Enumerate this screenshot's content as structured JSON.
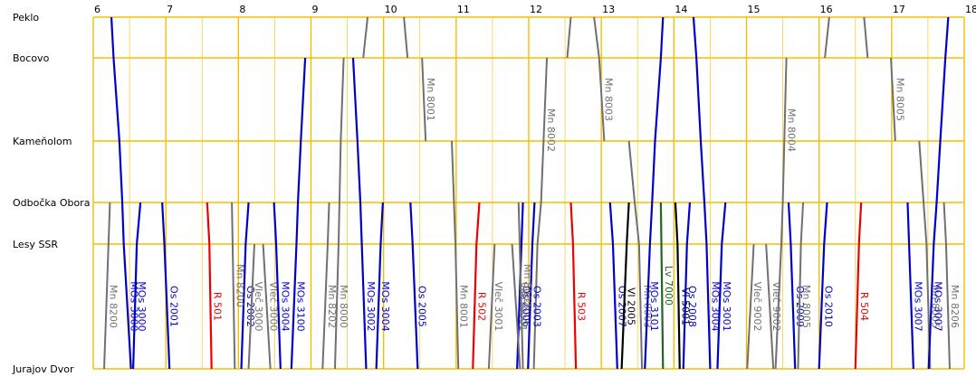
{
  "stations": [
    {
      "name": "Peklo",
      "km": 0
    },
    {
      "name": "Bocovo",
      "km": 5
    },
    {
      "name": "Kameňolom",
      "km": 15
    },
    {
      "name": "Odbočka Obora",
      "km": 22.4
    },
    {
      "name": "Lesy SSR",
      "km": 27.4
    },
    {
      "name": "Jurajov Dvor",
      "km": 42.4
    }
  ],
  "hours": [
    "6",
    "7",
    "8",
    "9",
    "10",
    "11",
    "12",
    "13",
    "14",
    "15",
    "16",
    "17",
    "18"
  ],
  "time_range": [
    6,
    18
  ],
  "colors": {
    "grid_hour": "#f0c000",
    "grid_half": "#f5d040",
    "grid_station": "#f0c000",
    "MOs": "#0000cc",
    "Os": "#0000cc",
    "Mn": "#707070",
    "Vlec": "#707070",
    "R": "#ee0000",
    "Lv": "#226622",
    "Vl": "#000000"
  },
  "trains": [
    {
      "label": "MOs 3000",
      "kind": "MOs",
      "stops": [
        [
          6.25,
          0
        ],
        [
          6.28,
          5
        ],
        [
          6.36,
          15
        ],
        [
          6.4,
          22.4
        ],
        [
          6.42,
          27.4
        ],
        [
          6.52,
          42.4
        ]
      ]
    },
    {
      "label": "MOs 3000",
      "kind": "MOs",
      "stops": [
        [
          6.65,
          22.4
        ],
        [
          6.6,
          27.4
        ],
        [
          6.55,
          42.4
        ]
      ]
    },
    {
      "label": "Mn 8200",
      "kind": "Mn",
      "stops": [
        [
          6.23,
          22.4
        ],
        [
          6.21,
          27.4
        ],
        [
          6.15,
          42.4
        ]
      ]
    },
    {
      "label": "Os 2001",
      "kind": "Os",
      "stops": [
        [
          6.95,
          22.4
        ],
        [
          6.98,
          27.4
        ],
        [
          7.05,
          42.4
        ]
      ]
    },
    {
      "label": "R 501",
      "kind": "R",
      "stops": [
        [
          7.57,
          22.4
        ],
        [
          7.6,
          27.4
        ],
        [
          7.63,
          42.4
        ]
      ]
    },
    {
      "label": "Os 2002",
      "kind": "Os",
      "stops": [
        [
          8.14,
          22.4
        ],
        [
          8.1,
          27.4
        ],
        [
          8.04,
          42.4
        ]
      ]
    },
    {
      "label": "Mn 8200",
      "kind": "Mn",
      "stops": [
        [
          7.91,
          22.4
        ],
        [
          7.95,
          42.4
        ]
      ]
    },
    {
      "label": "Vleč 3000",
      "kind": "Mn",
      "stops": [
        [
          8.22,
          27.4
        ],
        [
          8.14,
          42.4
        ]
      ]
    },
    {
      "label": "Vleč 3000",
      "kind": "Mn",
      "stops": [
        [
          8.34,
          27.4
        ],
        [
          8.44,
          42.4
        ]
      ]
    },
    {
      "label": "MOs 3004",
      "kind": "MOs",
      "stops": [
        [
          8.49,
          22.4
        ],
        [
          8.52,
          27.4
        ],
        [
          8.58,
          42.4
        ]
      ]
    },
    {
      "label": "MOs 3100",
      "kind": "MOs",
      "stops": [
        [
          8.92,
          5
        ],
        [
          8.86,
          15
        ],
        [
          8.82,
          22.4
        ],
        [
          8.8,
          27.4
        ],
        [
          8.73,
          42.4
        ]
      ]
    },
    {
      "label": "Mn 8202",
      "kind": "Mn",
      "stops": [
        [
          9.25,
          22.4
        ],
        [
          9.23,
          27.4
        ],
        [
          9.16,
          42.4
        ]
      ]
    },
    {
      "label": "Mn 8000",
      "kind": "Mn",
      "stops": [
        [
          9.45,
          5
        ],
        [
          9.41,
          15
        ],
        [
          9.38,
          27.4
        ],
        [
          9.33,
          42.4
        ]
      ]
    },
    {
      "label": "MOs 3002",
      "kind": "MOs",
      "stops": [
        [
          9.58,
          5
        ],
        [
          9.64,
          15
        ],
        [
          9.68,
          22.4
        ],
        [
          9.7,
          27.4
        ],
        [
          9.76,
          42.4
        ]
      ]
    },
    {
      "label": "MOs 3004",
      "kind": "MOs",
      "stops": [
        [
          9.99,
          22.4
        ],
        [
          9.96,
          27.4
        ],
        [
          9.9,
          42.4
        ]
      ]
    },
    {
      "label": "",
      "kind": "Mn",
      "stops": [
        [
          9.78,
          0
        ],
        [
          9.72,
          5
        ]
      ]
    },
    {
      "label": "",
      "kind": "Mn",
      "stops": [
        [
          10.28,
          0
        ],
        [
          10.33,
          5
        ]
      ]
    },
    {
      "label": "Mn 8001",
      "kind": "Mn",
      "stops": [
        [
          10.53,
          5
        ],
        [
          10.58,
          15
        ]
      ]
    },
    {
      "label": "Os 2005",
      "kind": "Os",
      "stops": [
        [
          10.37,
          22.4
        ],
        [
          10.4,
          27.4
        ],
        [
          10.47,
          42.4
        ]
      ]
    },
    {
      "label": "Mn 8001",
      "kind": "Mn",
      "stops": [
        [
          10.94,
          15
        ],
        [
          10.99,
          27.4
        ],
        [
          11.03,
          42.4
        ]
      ]
    },
    {
      "label": "R 502",
      "kind": "R",
      "stops": [
        [
          11.32,
          22.4
        ],
        [
          11.28,
          27.4
        ],
        [
          11.23,
          42.4
        ]
      ]
    },
    {
      "label": "Vleč 3001",
      "kind": "Mn",
      "stops": [
        [
          11.53,
          27.4
        ],
        [
          11.45,
          42.4
        ]
      ]
    },
    {
      "label": "Os 2006",
      "kind": "Os",
      "stops": [
        [
          11.92,
          22.4
        ],
        [
          11.9,
          27.4
        ],
        [
          11.84,
          42.4
        ]
      ]
    },
    {
      "label": "Mn 8002",
      "kind": "Mn",
      "stops": [
        [
          12.25,
          5
        ],
        [
          12.17,
          22.4
        ],
        [
          12.12,
          27.4
        ],
        [
          12.07,
          42.4
        ]
      ]
    },
    {
      "label": "Os 2003",
      "kind": "Os",
      "stops": [
        [
          12.08,
          22.4
        ],
        [
          12.05,
          27.4
        ],
        [
          11.99,
          42.4
        ]
      ]
    },
    {
      "label": "Vleč 9001",
      "kind": "Mn",
      "stops": [
        [
          11.77,
          27.4
        ],
        [
          11.88,
          42.4
        ]
      ]
    },
    {
      "label": "Mn 8002",
      "kind": "Mn",
      "stops": [
        [
          11.86,
          22.4
        ],
        [
          11.92,
          42.4
        ]
      ]
    },
    {
      "label": "",
      "kind": "Mn",
      "stops": [
        [
          12.58,
          0
        ],
        [
          12.53,
          5
        ]
      ]
    },
    {
      "label": "R 503",
      "kind": "R",
      "stops": [
        [
          12.58,
          22.4
        ],
        [
          12.61,
          27.4
        ],
        [
          12.65,
          42.4
        ]
      ]
    },
    {
      "label": "Mn 8003",
      "kind": "Mn",
      "stops": [
        [
          12.9,
          0
        ],
        [
          12.97,
          5
        ],
        [
          13.04,
          15
        ]
      ]
    },
    {
      "label": "Os 2007",
      "kind": "Os",
      "stops": [
        [
          13.12,
          22.4
        ],
        [
          13.16,
          27.4
        ],
        [
          13.22,
          42.4
        ]
      ]
    },
    {
      "label": "Vl 2005",
      "kind": "Vl",
      "stops": [
        [
          13.38,
          22.4
        ],
        [
          13.35,
          27.4
        ],
        [
          13.28,
          42.4
        ]
      ]
    },
    {
      "label": "Mn 8003",
      "kind": "Mn",
      "stops": [
        [
          13.38,
          15
        ],
        [
          13.46,
          22.4
        ],
        [
          13.52,
          27.4
        ],
        [
          13.56,
          42.4
        ]
      ]
    },
    {
      "label": "MOs 3101",
      "kind": "MOs",
      "stops": [
        [
          13.85,
          0
        ],
        [
          13.82,
          5
        ],
        [
          13.74,
          15
        ],
        [
          13.7,
          22.4
        ],
        [
          13.67,
          27.4
        ],
        [
          13.6,
          42.4
        ]
      ]
    },
    {
      "label": "Lv 7000",
      "kind": "Lv",
      "stops": [
        [
          13.82,
          22.4
        ],
        [
          13.85,
          42.4
        ]
      ]
    },
    {
      "label": "Vl 5001",
      "kind": "Vl",
      "stops": [
        [
          14.02,
          22.4
        ],
        [
          14.05,
          27.4
        ],
        [
          14.08,
          42.4
        ]
      ]
    },
    {
      "label": "Os 2008",
      "kind": "Os",
      "stops": [
        [
          14.22,
          22.4
        ],
        [
          14.18,
          27.4
        ],
        [
          14.13,
          42.4
        ]
      ]
    },
    {
      "label": "MOs 3004",
      "kind": "MOs",
      "stops": [
        [
          14.27,
          0
        ],
        [
          14.31,
          5
        ],
        [
          14.37,
          15
        ],
        [
          14.42,
          22.4
        ],
        [
          14.45,
          27.4
        ],
        [
          14.5,
          42.4
        ]
      ]
    },
    {
      "label": "MOs 3001",
      "kind": "MOs",
      "stops": [
        [
          14.71,
          22.4
        ],
        [
          14.66,
          27.4
        ],
        [
          14.6,
          42.4
        ]
      ]
    },
    {
      "label": "Vleč 9002",
      "kind": "Mn",
      "stops": [
        [
          15.1,
          27.4
        ],
        [
          15.01,
          42.4
        ]
      ]
    },
    {
      "label": "Mn 8004",
      "kind": "Mn",
      "stops": [
        [
          15.55,
          5
        ],
        [
          15.5,
          22.4
        ],
        [
          15.48,
          27.4
        ],
        [
          15.4,
          42.4
        ]
      ]
    },
    {
      "label": "Vleč 9002",
      "kind": "Mn",
      "stops": [
        [
          15.27,
          27.4
        ],
        [
          15.37,
          42.4
        ]
      ]
    },
    {
      "label": "Os 2009",
      "kind": "Os",
      "stops": [
        [
          15.58,
          22.4
        ],
        [
          15.61,
          27.4
        ],
        [
          15.67,
          42.4
        ]
      ]
    },
    {
      "label": "Mn 8005",
      "kind": "Mn",
      "stops": [
        [
          15.78,
          22.4
        ],
        [
          15.75,
          27.4
        ],
        [
          15.71,
          42.4
        ]
      ]
    },
    {
      "label": "Os 2010",
      "kind": "Os",
      "stops": [
        [
          16.11,
          22.4
        ],
        [
          16.07,
          27.4
        ],
        [
          16.0,
          42.4
        ]
      ]
    },
    {
      "label": "",
      "kind": "Mn",
      "stops": [
        [
          16.14,
          0
        ],
        [
          16.08,
          5
        ]
      ]
    },
    {
      "label": "",
      "kind": "Mn",
      "stops": [
        [
          16.62,
          0
        ],
        [
          16.67,
          5
        ]
      ]
    },
    {
      "label": "R 504",
      "kind": "R",
      "stops": [
        [
          16.58,
          22.4
        ],
        [
          16.55,
          27.4
        ],
        [
          16.5,
          42.4
        ]
      ]
    },
    {
      "label": "Mn 8005",
      "kind": "Mn",
      "stops": [
        [
          16.99,
          5
        ],
        [
          17.05,
          15
        ]
      ]
    },
    {
      "label": "MOs 3007",
      "kind": "MOs",
      "stops": [
        [
          17.22,
          22.4
        ],
        [
          17.24,
          27.4
        ],
        [
          17.3,
          42.4
        ]
      ]
    },
    {
      "label": "Mn 8005",
      "kind": "Mn",
      "stops": [
        [
          17.38,
          15
        ],
        [
          17.44,
          22.4
        ],
        [
          17.48,
          27.4
        ],
        [
          17.53,
          42.4
        ]
      ]
    },
    {
      "label": "MOs 3007",
      "kind": "MOs",
      "stops": [
        [
          17.78,
          0
        ],
        [
          17.74,
          5
        ],
        [
          17.67,
          15
        ],
        [
          17.62,
          22.4
        ],
        [
          17.58,
          27.4
        ],
        [
          17.51,
          42.4
        ]
      ]
    },
    {
      "label": "Mn 8206",
      "kind": "Mn",
      "stops": [
        [
          17.72,
          22.4
        ],
        [
          17.75,
          27.4
        ],
        [
          17.8,
          42.4
        ]
      ]
    }
  ]
}
